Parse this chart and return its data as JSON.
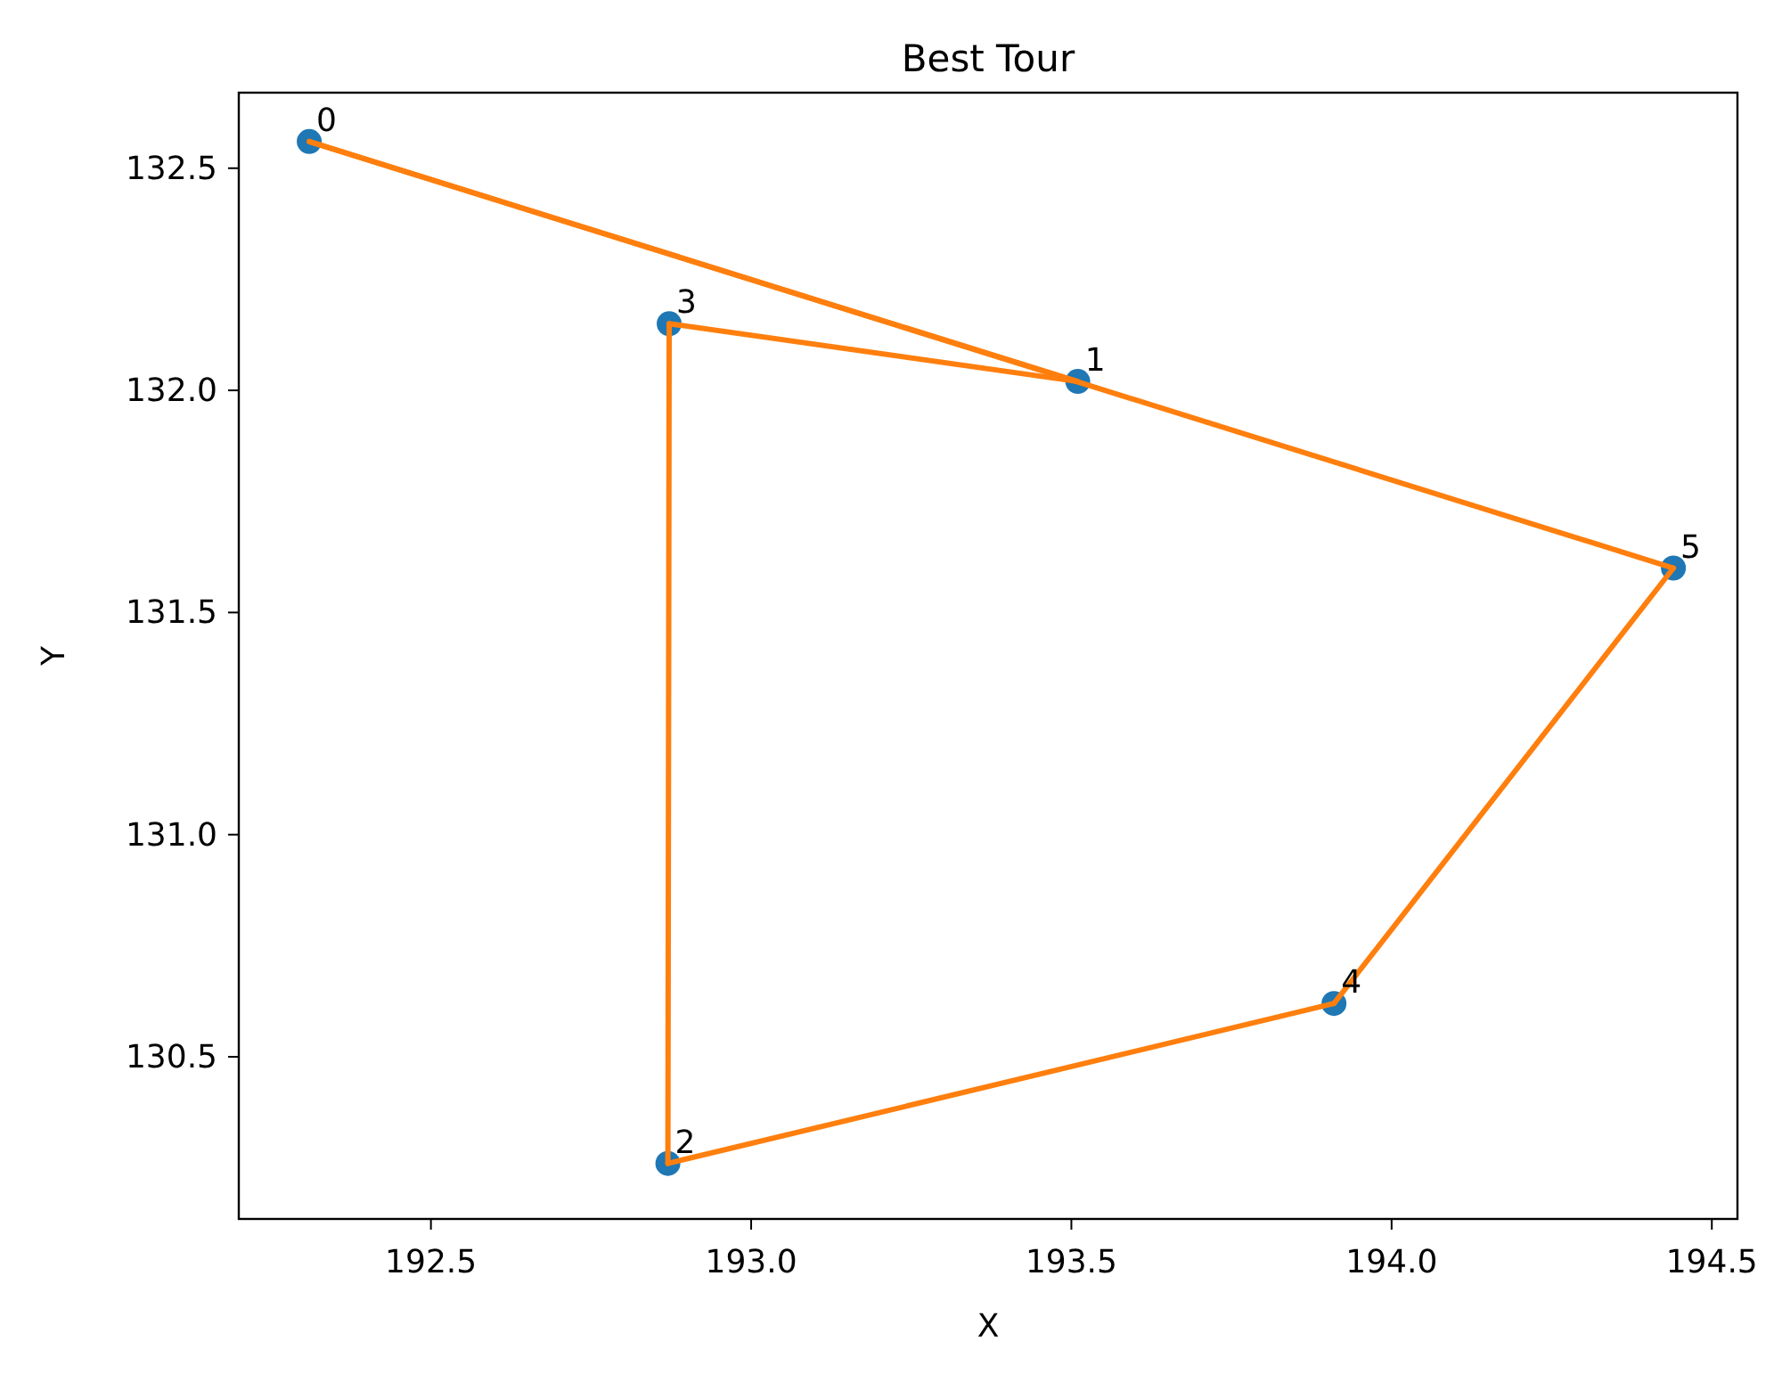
{
  "chart_data": {
    "type": "scatter",
    "title": "Best Tour",
    "xlabel": "X",
    "ylabel": "Y",
    "xlim": [
      192.2,
      194.54
    ],
    "xticks": [
      192.5,
      {
        "value": 193,
        "label": "193.0"
      },
      193.5,
      {
        "value": 194,
        "label": "194.0"
      },
      194.5
    ],
    "ylim": [
      130.135,
      132.67
    ],
    "yticks": [
      130.5,
      {
        "value": 131,
        "label": "131.0"
      },
      131.5,
      {
        "value": 132,
        "label": "132.0"
      },
      132.5
    ],
    "marker": "circle",
    "series": [
      {
        "color": "#1f77b4",
        "x": [
          192.31,
          193.51,
          192.87,
          192.872,
          193.91,
          194.44
        ],
        "values": [
          132.56,
          132.02,
          130.26,
          132.15,
          130.62,
          131.6
        ]
      },
      {
        "type": "line",
        "color": "#ff7f0e",
        "marker": "none",
        "x": [
          192.31,
          193.51
        ],
        "values": [
          132.56,
          132.02
        ]
      },
      {
        "type": "line",
        "color": "#ff7f0e",
        "marker": "none",
        "x": [
          193.51,
          192.872
        ],
        "values": [
          132.02,
          132.15
        ]
      },
      {
        "type": "line",
        "color": "#ff7f0e",
        "marker": "none",
        "x": [
          192.872,
          192.87
        ],
        "values": [
          132.15,
          130.26
        ]
      },
      {
        "type": "line",
        "color": "#ff7f0e",
        "marker": "none",
        "x": [
          192.87,
          193.91
        ],
        "values": [
          130.26,
          130.62
        ]
      },
      {
        "type": "line",
        "color": "#ff7f0e",
        "marker": "none",
        "x": [
          193.91,
          194.44
        ],
        "values": [
          130.62,
          131.6
        ]
      },
      {
        "type": "line",
        "color": "#ff7f0e",
        "marker": "none",
        "x": [
          194.44,
          192.31
        ],
        "values": [
          131.6,
          132.56
        ]
      }
    ],
    "annotations": [
      {
        "text": "0",
        "x": 192.31,
        "y": 132.56
      },
      {
        "text": "1",
        "x": 193.51,
        "y": 132.02
      },
      {
        "text": "2",
        "x": 192.87,
        "y": 130.26
      },
      {
        "text": "3",
        "x": 192.872,
        "y": 132.15
      },
      {
        "text": "4",
        "x": 193.91,
        "y": 130.62
      },
      {
        "text": "5",
        "x": 194.44,
        "y": 131.6
      }
    ]
  }
}
